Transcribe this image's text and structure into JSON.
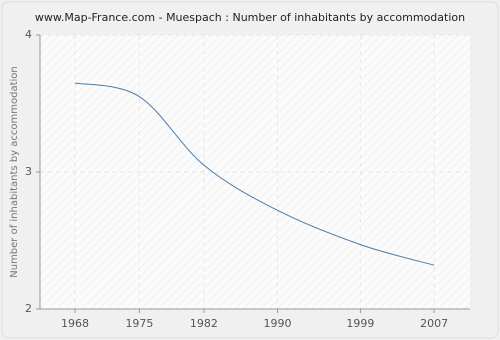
{
  "chart_data": {
    "type": "line",
    "title": "www.Map-France.com - Muespach : Number of inhabitants by accommodation",
    "y_label": "Number of inhabitants by accommodation",
    "x": [
      1968,
      1975,
      1982,
      1990,
      1999,
      2007
    ],
    "series": [
      {
        "name": "Muespach",
        "color": "#4f7ba8",
        "values": [
          3.65,
          3.55,
          3.05,
          2.72,
          2.47,
          2.32
        ]
      }
    ],
    "xlim": [
      1964.2,
      2010.9
    ],
    "xticks": [
      1968,
      1975,
      1982,
      1990,
      1999,
      2007
    ],
    "ylim": [
      2,
      4
    ],
    "yticks": [
      2,
      3,
      4
    ],
    "grid": true
  }
}
